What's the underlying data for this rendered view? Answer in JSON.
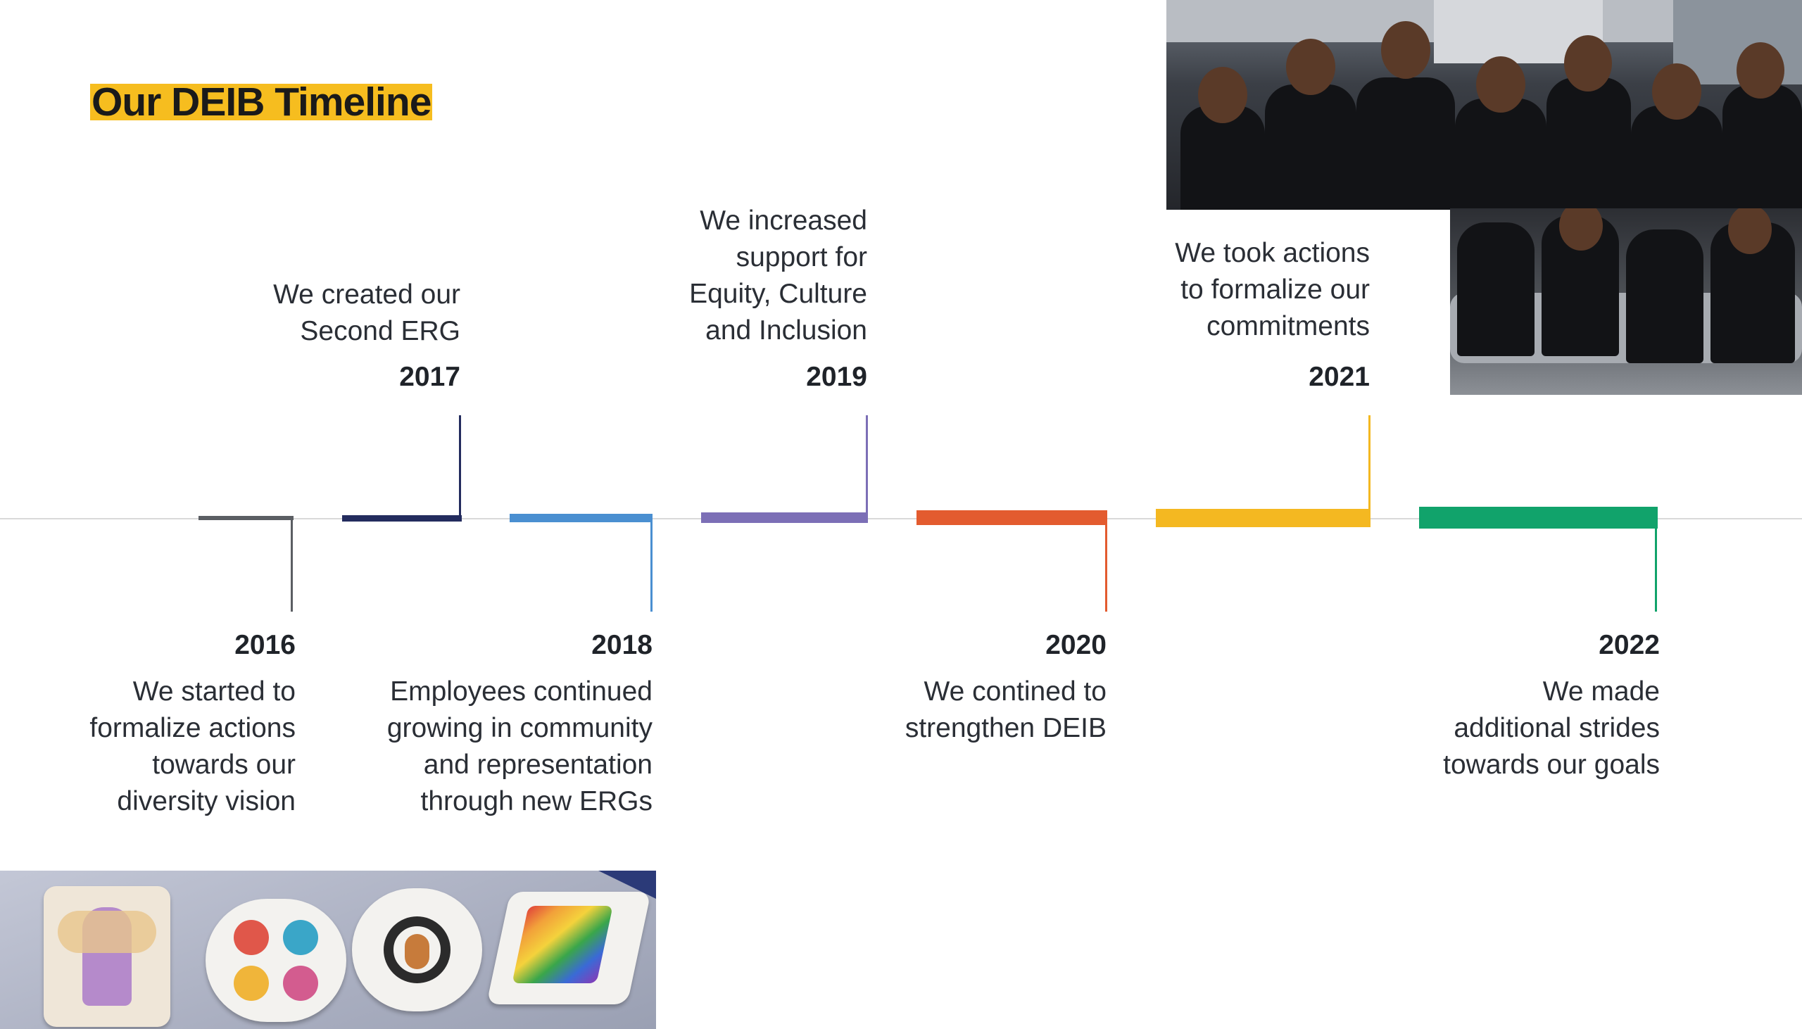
{
  "title": "Our DEIB Timeline",
  "colors": {
    "title_highlight": "#f6bd1f",
    "2016": "#5b5e63",
    "2017": "#232c5e",
    "2018": "#4a8fd1",
    "2019": "#7c6fb6",
    "2020": "#e35b2f",
    "2021": "#f4b821",
    "2022": "#11a36b"
  },
  "events": [
    {
      "year": "2016",
      "text": "We started to\nformalize actions\ntowards our\ndiversity vision"
    },
    {
      "year": "2017",
      "text": "We created our\nSecond ERG"
    },
    {
      "year": "2018",
      "text": "Employees continued\ngrowing in community\nand representation\nthrough new ERGs"
    },
    {
      "year": "2019",
      "text": "We increased\nsupport for\nEquity, Culture\nand Inclusion"
    },
    {
      "year": "2020",
      "text": "We contined to\nstrengthen DEIB"
    },
    {
      "year": "2021",
      "text": "We took actions\nto formalize our\ncommitments"
    },
    {
      "year": "2022",
      "text": "We made\nadditional strides\ntowards our goals"
    }
  ]
}
